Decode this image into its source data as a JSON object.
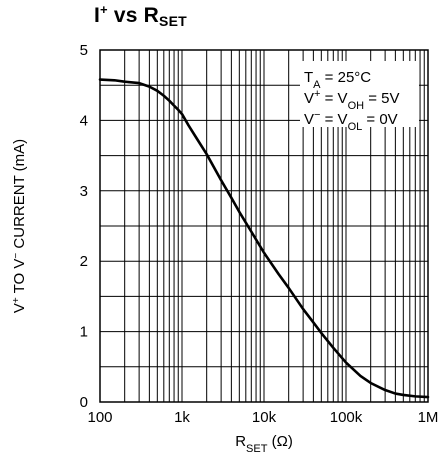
{
  "chart_data": {
    "type": "line",
    "title": {
      "main": "I",
      "sup": "+",
      "mid": " vs R",
      "sub": "SET"
    },
    "xlabel": {
      "main": "R",
      "sub": "SET",
      "tail": " (Ω)"
    },
    "ylabel": {
      "a": "V",
      "a_sup": "+",
      "b": " TO V",
      "b_sup": "−",
      "c": " CURRENT (mA)"
    },
    "x_scale": "log",
    "xlim": [
      100,
      1000000
    ],
    "ylim": [
      0,
      5
    ],
    "x_ticks": [
      100,
      1000,
      10000,
      100000,
      1000000
    ],
    "x_tick_labels": [
      "100",
      "1k",
      "10k",
      "100k",
      "1M"
    ],
    "y_ticks": [
      0,
      1,
      2,
      3,
      4,
      5
    ],
    "y_tick_labels": [
      "0",
      "1",
      "2",
      "3",
      "4",
      "5"
    ],
    "grid": true,
    "annotations": [
      {
        "parts": [
          [
            "T",
            ""
          ],
          [
            "A",
            "sub"
          ],
          [
            " = 25°C",
            ""
          ]
        ]
      },
      {
        "parts": [
          [
            "V",
            ""
          ],
          [
            "+",
            "sup"
          ],
          [
            " = V",
            ""
          ],
          [
            "OH",
            "sub"
          ],
          [
            " = 5V",
            ""
          ]
        ]
      },
      {
        "parts": [
          [
            "V",
            ""
          ],
          [
            "−",
            "sup"
          ],
          [
            " = V",
            ""
          ],
          [
            "OL",
            "sub"
          ],
          [
            " = 0V",
            ""
          ]
        ]
      }
    ],
    "annotation_placement": "top-right",
    "series": [
      {
        "x": [
          100,
          150,
          200,
          300,
          400,
          500,
          600,
          700,
          800,
          900,
          1000,
          1200,
          1500,
          2000,
          3000,
          4000,
          5000,
          7000,
          10000,
          15000,
          20000,
          30000,
          40000,
          50000,
          70000,
          100000,
          150000,
          200000,
          300000,
          400000,
          500000,
          700000,
          1000000
        ],
        "y": [
          4.58,
          4.57,
          4.55,
          4.53,
          4.48,
          4.42,
          4.35,
          4.28,
          4.21,
          4.15,
          4.09,
          3.93,
          3.75,
          3.52,
          3.15,
          2.9,
          2.7,
          2.42,
          2.12,
          1.82,
          1.62,
          1.32,
          1.13,
          0.98,
          0.77,
          0.56,
          0.37,
          0.27,
          0.17,
          0.12,
          0.1,
          0.08,
          0.07
        ]
      }
    ]
  }
}
